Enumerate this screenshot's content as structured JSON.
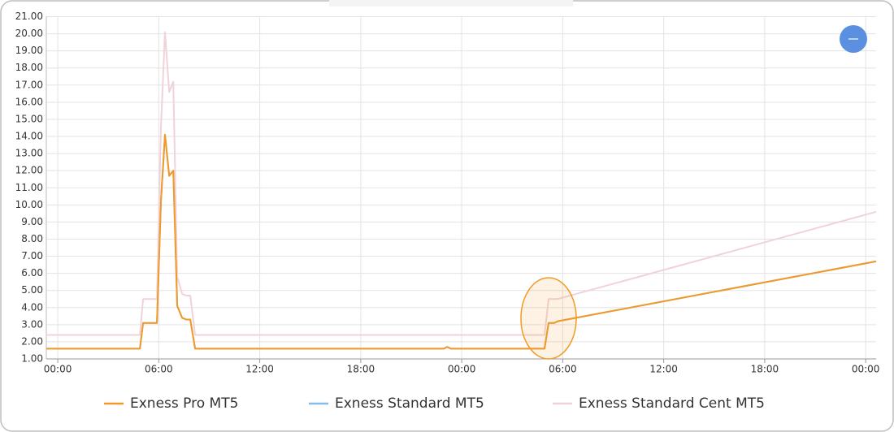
{
  "chart_data": {
    "type": "line",
    "x": [
      -0.68,
      4.88,
      5.07,
      5.89,
      6.13,
      6.37,
      6.62,
      6.86,
      7.1,
      7.39,
      7.63,
      7.87,
      8.16,
      22.94,
      23.13,
      23.37,
      28.92,
      29.16,
      29.5,
      29.7,
      48.62
    ],
    "series": [
      {
        "name": "Exness Pro MT5",
        "color": "#f29a25",
        "values": [
          1.6,
          1.6,
          3.1,
          3.1,
          10.2,
          14.1,
          11.7,
          12.0,
          4.1,
          3.4,
          3.3,
          3.3,
          1.6,
          1.6,
          1.7,
          1.6,
          1.6,
          3.1,
          3.1,
          3.2,
          6.7
        ]
      },
      {
        "name": "Exness Standard MT5",
        "color": "#86bde8",
        "values": [
          1.6,
          1.6,
          3.1,
          3.1,
          10.2,
          14.1,
          11.7,
          12.0,
          4.1,
          3.4,
          3.3,
          3.3,
          1.6,
          1.6,
          1.7,
          1.6,
          1.6,
          3.1,
          3.1,
          3.2,
          6.7
        ]
      },
      {
        "name": "Exness Standard Cent MT5",
        "color": "#f0d3d8",
        "values": [
          2.4,
          2.4,
          4.5,
          4.5,
          14.5,
          20.1,
          16.6,
          17.2,
          5.8,
          4.8,
          4.7,
          4.7,
          2.4,
          2.4,
          2.4,
          2.4,
          2.4,
          4.5,
          4.5,
          4.5,
          9.6
        ]
      }
    ],
    "xlim": [
      -0.68,
      48.62
    ],
    "xticks": [
      {
        "value": 0,
        "label": "00:00"
      },
      {
        "value": 6,
        "label": "06:00"
      },
      {
        "value": 12,
        "label": "12:00"
      },
      {
        "value": 18,
        "label": "18:00"
      },
      {
        "value": 24,
        "label": "00:00"
      },
      {
        "value": 30,
        "label": "06:00"
      },
      {
        "value": 36,
        "label": "12:00"
      },
      {
        "value": 42,
        "label": "18:00"
      },
      {
        "value": 48,
        "label": "00:00"
      }
    ],
    "ylim": [
      1,
      21
    ],
    "yticks": [
      {
        "value": 1,
        "label": "1.00"
      },
      {
        "value": 2,
        "label": "2.00"
      },
      {
        "value": 3,
        "label": "3.00"
      },
      {
        "value": 4,
        "label": "4.00"
      },
      {
        "value": 5,
        "label": "5.00"
      },
      {
        "value": 6,
        "label": "6.00"
      },
      {
        "value": 7,
        "label": "7.00"
      },
      {
        "value": 8,
        "label": "8.00"
      },
      {
        "value": 9,
        "label": "9.00"
      },
      {
        "value": 10,
        "label": "10.00"
      },
      {
        "value": 11,
        "label": "11.00"
      },
      {
        "value": 12,
        "label": "12.00"
      },
      {
        "value": 13,
        "label": "13.00"
      },
      {
        "value": 14,
        "label": "14.00"
      },
      {
        "value": 15,
        "label": "15.00"
      },
      {
        "value": 16,
        "label": "16.00"
      },
      {
        "value": 17,
        "label": "17.00"
      },
      {
        "value": 18,
        "label": "18.00"
      },
      {
        "value": 19,
        "label": "19.00"
      },
      {
        "value": 20,
        "label": "20.00"
      },
      {
        "value": 21,
        "label": "21.00"
      }
    ],
    "grid": true,
    "legend": "bottom"
  }
}
